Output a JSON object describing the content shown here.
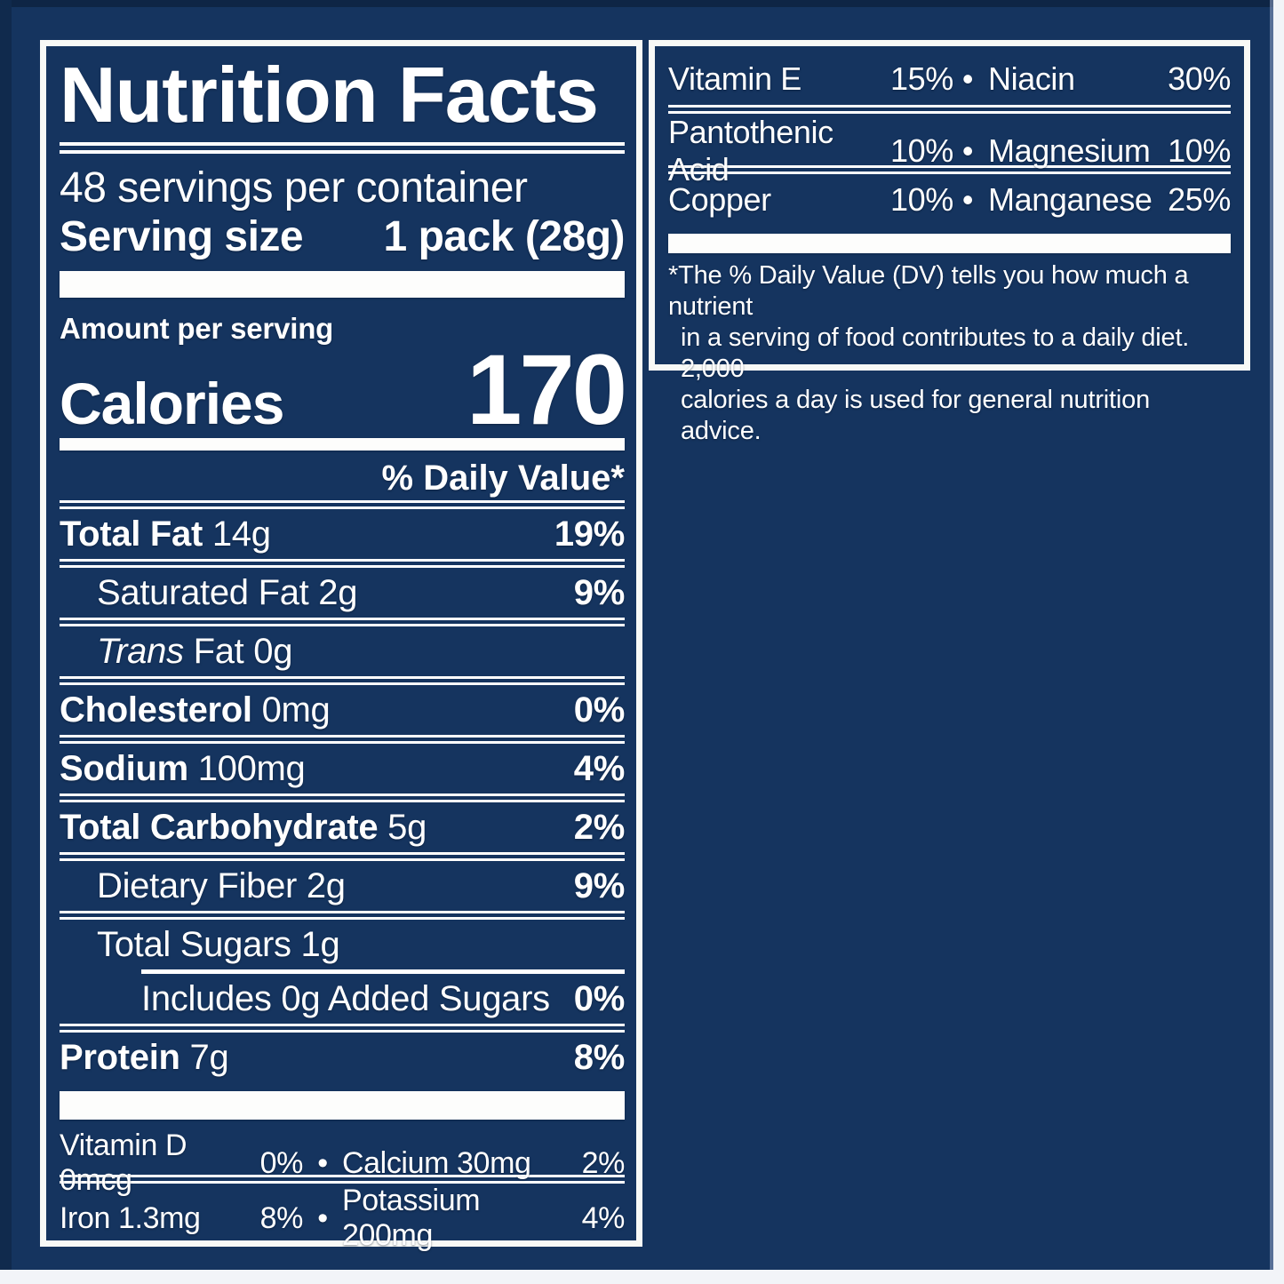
{
  "colors": {
    "navy_background": "#15345f",
    "label_white": "#ffffff",
    "edge_white": "#f2f4f8"
  },
  "bullet": "•",
  "left_panel": {
    "title": "Nutrition Facts",
    "servings": "48 servings per container",
    "serving_size_label": "Serving size",
    "serving_size_value": "1 pack (28g)",
    "amount_per_serving": "Amount per serving",
    "calories_label": "Calories",
    "calories_value": "170",
    "dv_header": "% Daily Value*",
    "rows": [
      {
        "bold": "Total Fat",
        "text": " 14g",
        "pct": "19%"
      },
      {
        "text": "Saturated Fat 2g",
        "pct": "9%"
      },
      {
        "italic": "Trans",
        "text": " Fat 0g"
      },
      {
        "bold": "Cholesterol",
        "text": " 0mg",
        "pct": "0%"
      },
      {
        "bold": "Sodium",
        "text": " 100mg",
        "pct": "4%"
      },
      {
        "bold": "Total Carbohydrate",
        "text": " 5g",
        "pct": "2%"
      },
      {
        "text": "Dietary Fiber 2g",
        "pct": "9%"
      },
      {
        "text": "Total Sugars 1g"
      },
      {
        "text": "Includes 0g Added Sugars",
        "pct": "0%"
      },
      {
        "bold": "Protein",
        "text": " 7g",
        "pct": "8%"
      }
    ],
    "micros": [
      {
        "n1": "Vitamin D 0mcg",
        "p1": "0%",
        "n2": "Calcium 30mg",
        "p2": "2%"
      },
      {
        "n1": "Iron 1.3mg",
        "p1": "8%",
        "n2": "Potassium 200mg",
        "p2": "4%"
      }
    ]
  },
  "right_panel": {
    "rows": [
      {
        "n1": "Vitamin E",
        "p1": "15%",
        "n2": "Niacin",
        "p2": "30%"
      },
      {
        "n1": "Pantothenic Acid",
        "p1": "10%",
        "n2": "Magnesium",
        "p2": "10%"
      },
      {
        "n1": "Copper",
        "p1": "10%",
        "n2": "Manganese",
        "p2": "25%"
      }
    ],
    "footnote_lines": [
      "*The % Daily Value (DV) tells you how much a nutrient",
      "in a serving of food contributes to a daily diet. 2,000",
      "calories a day is used for general nutrition advice."
    ]
  }
}
